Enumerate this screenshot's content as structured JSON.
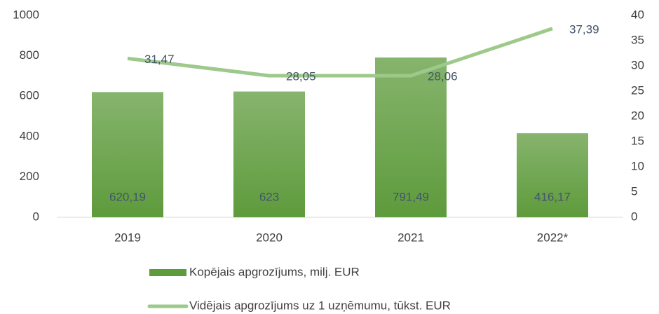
{
  "chart_data": {
    "type": "combo",
    "categories": [
      "2019",
      "2020",
      "2021",
      "2022*"
    ],
    "series": [
      {
        "name": "Kopējais apgrozījums, milj. EUR",
        "type": "bar",
        "color": "#5e9b3c",
        "axis": "y",
        "values": [
          620.19,
          623,
          791.49,
          416.17
        ],
        "value_labels": [
          "620,19",
          "623",
          "791,49",
          "416,17"
        ]
      },
      {
        "name": "Vidējais apgrozījums uz 1 uzņēmumu, tūkst. EUR",
        "type": "line",
        "color": "#9dc98a",
        "axis": "y2",
        "values": [
          31.47,
          28.05,
          28.06,
          37.39
        ],
        "value_labels": [
          "31,47",
          "28,05",
          "28,06",
          "37,39"
        ]
      }
    ],
    "ylim": [
      0,
      1000
    ],
    "yticks": [
      0,
      200,
      400,
      600,
      800,
      1000
    ],
    "y2lim": [
      0,
      40
    ],
    "y2ticks": [
      0,
      5,
      10,
      15,
      20,
      25,
      30,
      35,
      40
    ],
    "grid": false
  }
}
